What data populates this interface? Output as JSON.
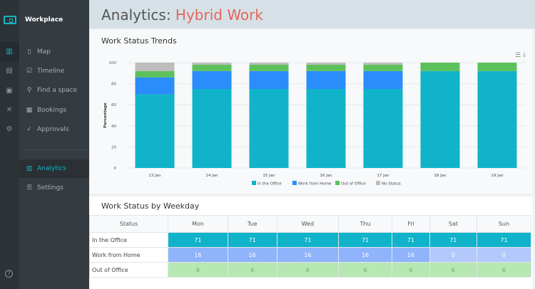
{
  "app": {
    "name": "Workplace"
  },
  "rail": {
    "icons": [
      "map-icon",
      "calendar-icon",
      "badge-icon",
      "network-icon",
      "gear-icon"
    ]
  },
  "sidebar": {
    "items": [
      {
        "label": "Map",
        "icon": "▯"
      },
      {
        "label": "Timeline",
        "icon": "☑"
      },
      {
        "label": "Find a space",
        "icon": "⚲"
      },
      {
        "label": "Bookings",
        "icon": "▦"
      },
      {
        "label": "Approvals",
        "icon": "✓"
      },
      {
        "label": "Analytics",
        "icon": "▥"
      },
      {
        "label": "Settings",
        "icon": "☰"
      }
    ],
    "active": "Analytics",
    "help": "?"
  },
  "header": {
    "prefix": "Analytics:",
    "highlight": "Hybrid Work"
  },
  "trends": {
    "title": "Work Status Trends"
  },
  "weekday": {
    "title": "Work Status by Weekday",
    "columns": [
      "Status",
      "Mon",
      "Tue",
      "Wed",
      "Thu",
      "Fri",
      "Sat",
      "Sun"
    ],
    "rows": [
      {
        "label": "In the Office",
        "values": [
          71,
          71,
          71,
          71,
          71,
          71,
          71
        ]
      },
      {
        "label": "Work from Home",
        "values": [
          16,
          16,
          16,
          16,
          16,
          0,
          0
        ]
      },
      {
        "label": "Out of Office",
        "values": [
          6,
          6,
          6,
          6,
          6,
          6,
          6
        ]
      }
    ]
  },
  "chart_data": {
    "type": "bar",
    "stacked": true,
    "categories": [
      "13 Jan",
      "14 Jan",
      "15 Jan",
      "16 Jan",
      "17 Jan",
      "18 Jan",
      "19 Jan"
    ],
    "ylabel": "Percentage",
    "ylim": [
      0,
      100
    ],
    "yticks": [
      0,
      20,
      40,
      60,
      80,
      100
    ],
    "grid": true,
    "legend": "bottom",
    "series": [
      {
        "name": "In the Office",
        "color": "#10b3c9",
        "values": [
          70,
          75,
          75,
          75,
          75,
          92,
          92
        ]
      },
      {
        "name": "Work from Home",
        "color": "#2b8cfb",
        "values": [
          16,
          17,
          17,
          17,
          17,
          0,
          0
        ]
      },
      {
        "name": "Out of Office",
        "color": "#5cc15a",
        "values": [
          6,
          6,
          6,
          6,
          6,
          8,
          8
        ]
      },
      {
        "name": "No Status",
        "color": "#bdbdbd",
        "values": [
          8,
          2,
          2,
          2,
          2,
          0,
          0
        ]
      }
    ]
  }
}
